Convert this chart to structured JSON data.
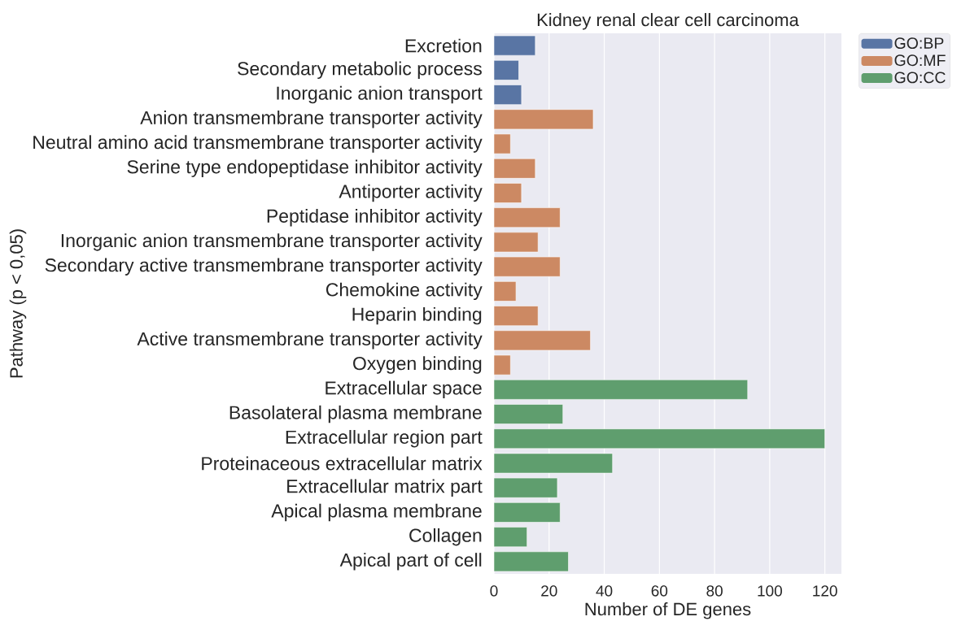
{
  "chart_data": {
    "type": "bar",
    "orientation": "horizontal",
    "title": "Kidney renal clear cell carcinoma",
    "xlabel": "Number of DE genes",
    "ylabel": "Pathway (p < 0,05)",
    "categories": [
      "Excretion",
      "Secondary metabolic process",
      "Inorganic anion transport",
      "Anion transmembrane transporter activity",
      "Neutral amino acid transmembrane transporter activity",
      "Serine type endopeptidase inhibitor activity",
      "Antiporter activity",
      "Peptidase inhibitor activity",
      "Inorganic anion transmembrane transporter activity",
      "Secondary active transmembrane transporter activity",
      "Chemokine activity",
      "Heparin binding",
      "Active transmembrane transporter activity",
      "Oxygen binding",
      "Extracellular space",
      "Basolateral plasma membrane",
      "Extracellular region part",
      "Proteinaceous extracellular matrix",
      "Extracellular matrix part",
      "Apical plasma membrane",
      "Collagen",
      "Apical part of cell"
    ],
    "series": [
      {
        "name": "GO:BP",
        "color": "#5975a4",
        "values": [
          15,
          9,
          10,
          null,
          null,
          null,
          null,
          null,
          null,
          null,
          null,
          null,
          null,
          null,
          null,
          null,
          null,
          null,
          null,
          null,
          null,
          null
        ]
      },
      {
        "name": "GO:MF",
        "color": "#cc8963",
        "values": [
          null,
          null,
          null,
          36,
          6,
          15,
          10,
          24,
          16,
          24,
          8,
          16,
          35,
          6,
          null,
          null,
          null,
          null,
          null,
          null,
          null,
          null
        ]
      },
      {
        "name": "GO:CC",
        "color": "#5f9e6e",
        "values": [
          null,
          null,
          null,
          null,
          null,
          null,
          null,
          null,
          null,
          null,
          null,
          null,
          null,
          null,
          92,
          25,
          120,
          43,
          23,
          24,
          12,
          27
        ]
      }
    ],
    "xlim": [
      0,
      126
    ],
    "xticks": [
      0,
      20,
      40,
      60,
      80,
      100,
      120
    ],
    "grid": "x",
    "legend": "top right"
  }
}
